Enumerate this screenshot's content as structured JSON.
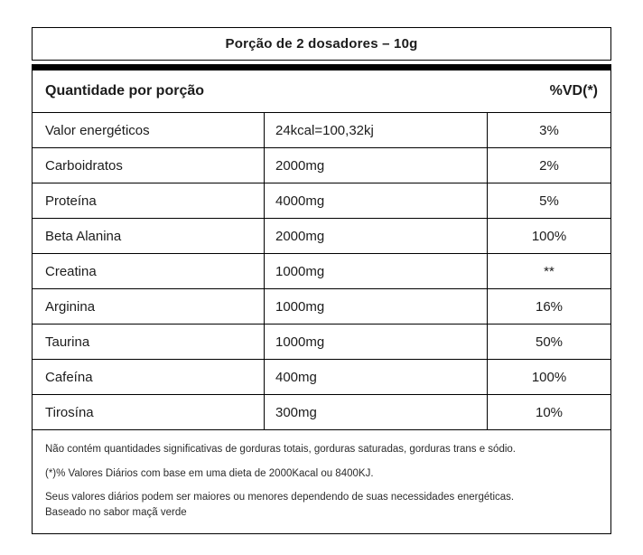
{
  "header": {
    "serving": "Porção de 2 dosadores – 10g"
  },
  "table": {
    "col_header_left": "Quantidade por porção",
    "col_header_right": "%VD(*)",
    "rows": [
      {
        "name": "Valor energéticos",
        "amount": "24kcal=100,32kj",
        "vd": "3%"
      },
      {
        "name": "Carboidratos",
        "amount": "2000mg",
        "vd": "2%"
      },
      {
        "name": "Proteína",
        "amount": "4000mg",
        "vd": "5%"
      },
      {
        "name": "Beta Alanina",
        "amount": "2000mg",
        "vd": "100%"
      },
      {
        "name": "Creatina",
        "amount": "1000mg",
        "vd": "**"
      },
      {
        "name": "Arginina",
        "amount": "1000mg",
        "vd": "16%"
      },
      {
        "name": "Taurina",
        "amount": "1000mg",
        "vd": "50%"
      },
      {
        "name": "Cafeína",
        "amount": "400mg",
        "vd": "100%"
      },
      {
        "name": "Tirosína",
        "amount": "300mg",
        "vd": "10%"
      }
    ]
  },
  "footnotes": {
    "line1": "Não contém quantidades significativas de gorduras totais, gorduras saturadas, gorduras trans e sódio.",
    "line2": "(*)% Valores Diários com base em uma dieta de 2000Kacal ou 8400KJ.",
    "line3": "Seus valores diários podem ser maiores ou menores dependendo de suas necessidades energéticas.",
    "line4": "Baseado no sabor maçã verde"
  }
}
